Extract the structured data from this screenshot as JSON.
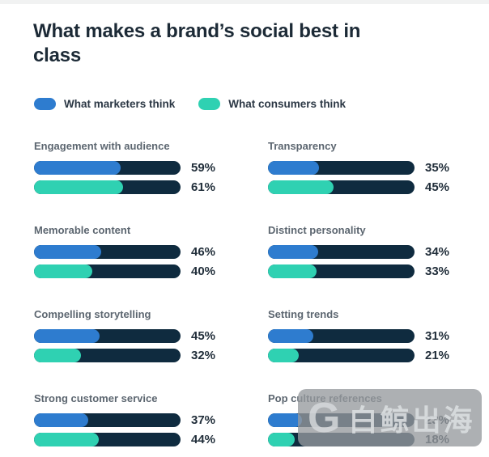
{
  "title": "What makes a brand’s social best in class",
  "legend": [
    {
      "label": "What marketers think",
      "color": "#2e7ccf"
    },
    {
      "label": "What consumers think",
      "color": "#2fd1b2"
    }
  ],
  "colors": {
    "bar_track": "#0f2b3f",
    "title_text": "#1c2a36",
    "category_text": "#5c6670",
    "value_text": "#222f3b"
  },
  "chart_data": {
    "type": "bar",
    "orientation": "horizontal",
    "title": "What makes a brand’s social best in class",
    "unit": "%",
    "xlim": [
      0,
      100
    ],
    "grid": false,
    "legend_position": "top",
    "categories": [
      "Engagement with audience",
      "Memorable content",
      "Compelling storytelling",
      "Strong customer service",
      "Transparency",
      "Distinct personality",
      "Setting trends",
      "Pop culture references"
    ],
    "series": [
      {
        "name": "What marketers think",
        "color": "#2e7ccf",
        "values": [
          59,
          46,
          45,
          37,
          35,
          34,
          31,
          23
        ]
      },
      {
        "name": "What consumers think",
        "color": "#2fd1b2",
        "values": [
          61,
          40,
          32,
          44,
          45,
          33,
          21,
          18
        ]
      }
    ]
  },
  "groups": [
    {
      "label": "Engagement with audience",
      "bars": [
        {
          "series": "What marketers think",
          "value": 59,
          "label": "59%"
        },
        {
          "series": "What consumers think",
          "value": 61,
          "label": "61%"
        }
      ]
    },
    {
      "label": "Transparency",
      "bars": [
        {
          "series": "What marketers think",
          "value": 35,
          "label": "35%"
        },
        {
          "series": "What consumers think",
          "value": 45,
          "label": "45%"
        }
      ]
    },
    {
      "label": "Memorable content",
      "bars": [
        {
          "series": "What marketers think",
          "value": 46,
          "label": "46%"
        },
        {
          "series": "What consumers think",
          "value": 40,
          "label": "40%"
        }
      ]
    },
    {
      "label": "Distinct personality",
      "bars": [
        {
          "series": "What marketers think",
          "value": 34,
          "label": "34%"
        },
        {
          "series": "What consumers think",
          "value": 33,
          "label": "33%"
        }
      ]
    },
    {
      "label": "Compelling storytelling",
      "bars": [
        {
          "series": "What marketers think",
          "value": 45,
          "label": "45%"
        },
        {
          "series": "What consumers think",
          "value": 32,
          "label": "32%"
        }
      ]
    },
    {
      "label": "Setting trends",
      "bars": [
        {
          "series": "What marketers think",
          "value": 31,
          "label": "31%"
        },
        {
          "series": "What consumers think",
          "value": 21,
          "label": "21%"
        }
      ]
    },
    {
      "label": "Strong customer service",
      "bars": [
        {
          "series": "What marketers think",
          "value": 37,
          "label": "37%"
        },
        {
          "series": "What consumers think",
          "value": 44,
          "label": "44%"
        }
      ]
    },
    {
      "label": "Pop culture references",
      "bars": [
        {
          "series": "What marketers think",
          "value": 23,
          "label": "23%"
        },
        {
          "series": "What consumers think",
          "value": 18,
          "label": "18%"
        }
      ]
    }
  ],
  "watermark": {
    "logo_letter": "G",
    "text": "白鲸出海"
  }
}
